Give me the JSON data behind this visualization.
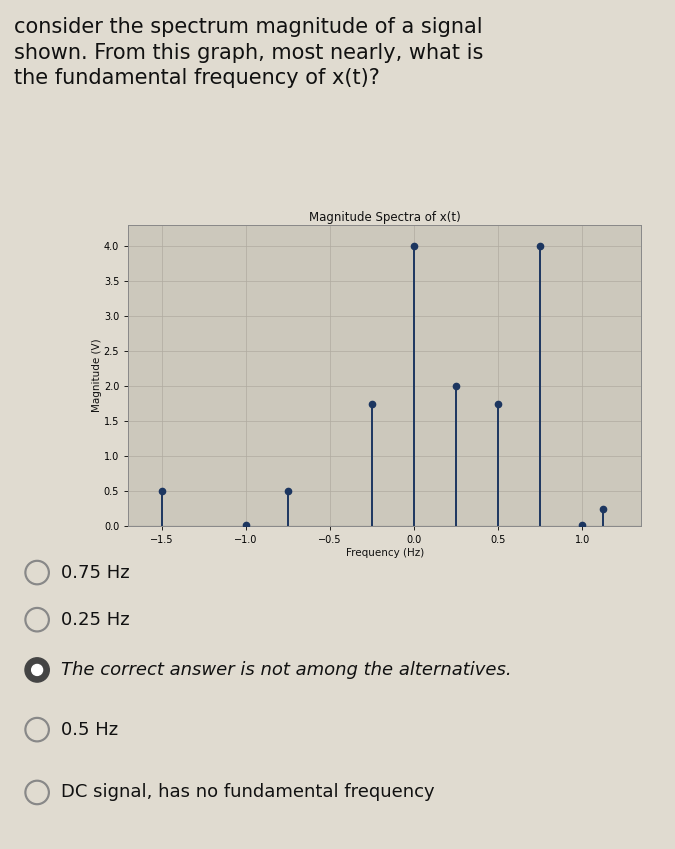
{
  "title": "Magnitude Spectra of x(t)",
  "xlabel": "Frequency (Hz)",
  "ylabel": "Magnitude (V)",
  "xlim": [
    -1.7,
    1.35
  ],
  "ylim": [
    0,
    4.3
  ],
  "yticks": [
    0,
    0.5,
    1,
    1.5,
    2,
    2.5,
    3,
    3.5,
    4
  ],
  "xticks": [
    -1.5,
    -1.0,
    -0.5,
    0,
    0.5,
    1.0
  ],
  "frequencies": [
    -1.5,
    -1.0,
    -0.75,
    -0.25,
    0.0,
    0.25,
    0.5,
    0.75,
    1.0,
    1.125
  ],
  "magnitudes": [
    0.5,
    0.02,
    0.5,
    1.75,
    4.0,
    2.0,
    1.75,
    4.0,
    0.02,
    0.25
  ],
  "stem_color": "#1c3660",
  "plot_bg": "#ccc8bc",
  "grid_color": "#b0aba0",
  "outer_bg": "#e0dbd0",
  "title_fontsize": 8.5,
  "axis_label_fontsize": 7.5,
  "tick_fontsize": 7,
  "question_text": "consider the spectrum magnitude of a signal\nshown. From this graph, most nearly, what is\nthe fundamental frequency of x(t)?",
  "question_fontsize": 15,
  "options": [
    {
      "label": "0.75 Hz",
      "selected": false
    },
    {
      "label": "0.25 Hz",
      "selected": false
    },
    {
      "label": "The correct answer is not among the alternatives.",
      "selected": true
    },
    {
      "label": "0.5 Hz",
      "selected": false
    },
    {
      "label": "DC signal, has no fundamental frequency",
      "selected": false
    }
  ],
  "option_fontsize": 13,
  "sidebar_color": "#2d6b6b"
}
